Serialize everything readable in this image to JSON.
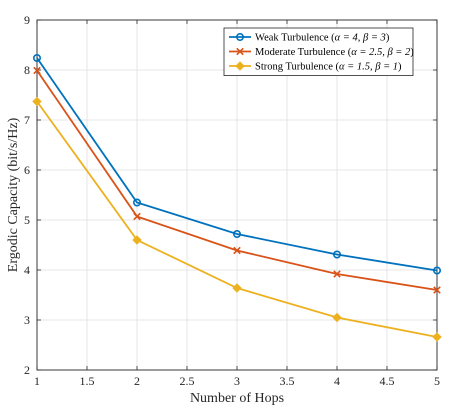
{
  "chart_data": {
    "type": "line",
    "title": "",
    "xlabel": "Number of Hops",
    "ylabel": "Ergodic Capacity (bit/s/Hz)",
    "xlim": [
      1,
      5
    ],
    "ylim": [
      2,
      9
    ],
    "x_ticks": [
      1,
      1.5,
      2,
      2.5,
      3,
      3.5,
      4,
      4.5,
      5
    ],
    "x_tick_labels": [
      "1",
      "1.5",
      "2",
      "2.5",
      "3",
      "3.5",
      "4",
      "4.5",
      "5"
    ],
    "y_ticks": [
      2,
      3,
      4,
      5,
      6,
      7,
      8,
      9
    ],
    "y_tick_labels": [
      "2",
      "3",
      "4",
      "5",
      "6",
      "7",
      "8",
      "9"
    ],
    "grid": true,
    "legend_position": "top-right",
    "x": [
      1,
      2,
      3,
      4,
      5
    ],
    "series": [
      {
        "name": "Weak Turbulence (α = 4, β = 3)",
        "legend_prefix": "Weak Turbulence (",
        "legend_params": "α = 4, β = 3",
        "legend_suffix": ")",
        "color": "#0072BD",
        "marker": "circle",
        "values": [
          8.24,
          5.35,
          4.72,
          4.31,
          3.99
        ]
      },
      {
        "name": "Moderate Turbulence (α = 2.5, β = 2)",
        "legend_prefix": "Moderate Turbulence (",
        "legend_params": "α = 2.5, β = 2",
        "legend_suffix": ")",
        "color": "#D95319",
        "marker": "x",
        "values": [
          7.99,
          5.07,
          4.39,
          3.92,
          3.6
        ]
      },
      {
        "name": "Strong Turbulence (α = 1.5, β = 1)",
        "legend_prefix": "Strong Turbulence (",
        "legend_params": "α = 1.5, β = 1",
        "legend_suffix": ")",
        "color": "#EDB120",
        "marker": "diamond",
        "values": [
          7.37,
          4.6,
          3.64,
          3.05,
          2.66
        ]
      }
    ]
  }
}
